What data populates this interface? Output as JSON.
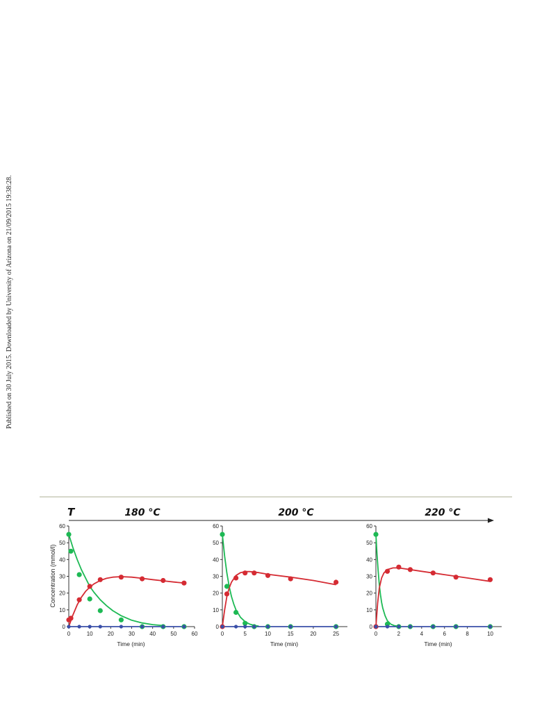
{
  "side_note": "Published on 30 July 2015. Downloaded by University of Arizona on 21/09/2015 19:38:28.",
  "figure": {
    "arrow_label": "T",
    "ylabel": "Concentration (mmol/l)",
    "colors": {
      "green": "#1db954",
      "red": "#d52b33",
      "blue": "#3a4fa8",
      "axis": "#333333",
      "rule": "#c9cbb8"
    }
  },
  "chart_data": [
    {
      "type": "scatter",
      "title": "180 °C",
      "xlabel": "Time (min)",
      "ylabel": "Concentration (mmol/l)",
      "xlim": [
        0,
        60
      ],
      "ylim": [
        0,
        60
      ],
      "xticks": [
        0,
        10,
        20,
        30,
        40,
        50,
        60
      ],
      "yticks": [
        0,
        10,
        20,
        30,
        40,
        50,
        60
      ],
      "series": [
        {
          "color": "green",
          "points": [
            [
              0,
              55
            ],
            [
              1,
              45
            ],
            [
              5,
              31
            ],
            [
              10,
              16.5
            ],
            [
              15,
              9.5
            ],
            [
              25,
              4
            ],
            [
              35,
              0
            ],
            [
              45,
              0
            ],
            [
              55,
              0
            ]
          ],
          "fit": [
            [
              0,
              55
            ],
            [
              2,
              47
            ],
            [
              4,
              40
            ],
            [
              6,
              34
            ],
            [
              8,
              29
            ],
            [
              10,
              24
            ],
            [
              12,
              20.5
            ],
            [
              15,
              16
            ],
            [
              18,
              12.5
            ],
            [
              21,
              9.5
            ],
            [
              25,
              6.5
            ],
            [
              30,
              3.8
            ],
            [
              35,
              2.2
            ],
            [
              40,
              1.2
            ],
            [
              45,
              0.6
            ]
          ]
        },
        {
          "color": "red",
          "points": [
            [
              0,
              4
            ],
            [
              1,
              5
            ],
            [
              5,
              16
            ],
            [
              10,
              24
            ],
            [
              15,
              28
            ],
            [
              25,
              29.5
            ],
            [
              35,
              28.5
            ],
            [
              45,
              27.5
            ],
            [
              55,
              26
            ]
          ],
          "fit": [
            [
              0,
              0
            ],
            [
              2,
              7
            ],
            [
              4,
              13
            ],
            [
              6,
              17.5
            ],
            [
              8,
              21
            ],
            [
              10,
              23.5
            ],
            [
              12,
              25.5
            ],
            [
              15,
              27.5
            ],
            [
              18,
              28.8
            ],
            [
              21,
              29.5
            ],
            [
              25,
              29.8
            ],
            [
              30,
              29.5
            ],
            [
              35,
              28.8
            ],
            [
              40,
              28
            ],
            [
              45,
              27.3
            ],
            [
              50,
              26.6
            ],
            [
              55,
              26
            ]
          ]
        },
        {
          "color": "blue",
          "points": [
            [
              0,
              0
            ],
            [
              5,
              0
            ],
            [
              10,
              0
            ],
            [
              15,
              0
            ],
            [
              25,
              0
            ],
            [
              35,
              0
            ],
            [
              45,
              0
            ],
            [
              55,
              0
            ]
          ],
          "fit": [
            [
              0,
              0
            ],
            [
              55,
              0
            ]
          ]
        }
      ]
    },
    {
      "type": "scatter",
      "title": "200 °C",
      "xlabel": "Time (min)",
      "ylabel": "",
      "xlim": [
        0,
        27.5
      ],
      "ylim": [
        0,
        60
      ],
      "xticks": [
        0,
        5,
        10,
        15,
        20,
        25
      ],
      "yticks": [
        0,
        10,
        20,
        30,
        40,
        50,
        60
      ],
      "series": [
        {
          "color": "green",
          "points": [
            [
              0,
              55
            ],
            [
              1,
              24
            ],
            [
              3,
              8.5
            ],
            [
              5,
              2
            ],
            [
              7,
              0
            ],
            [
              10,
              0
            ],
            [
              15,
              0
            ],
            [
              25,
              0
            ]
          ],
          "fit": [
            [
              0,
              55
            ],
            [
              0.5,
              42
            ],
            [
              1,
              32
            ],
            [
              1.5,
              24
            ],
            [
              2,
              18
            ],
            [
              2.5,
              13.5
            ],
            [
              3,
              10
            ],
            [
              4,
              5.5
            ],
            [
              5,
              3
            ],
            [
              6,
              1.5
            ],
            [
              7,
              0.7
            ],
            [
              8,
              0.3
            ]
          ]
        },
        {
          "color": "red",
          "points": [
            [
              0,
              0
            ],
            [
              1,
              19.5
            ],
            [
              3,
              29
            ],
            [
              5,
              32
            ],
            [
              7,
              32
            ],
            [
              10,
              30.5
            ],
            [
              15,
              28.5
            ],
            [
              25,
              26.5
            ]
          ],
          "fit": [
            [
              0,
              0
            ],
            [
              0.5,
              10
            ],
            [
              1,
              18
            ],
            [
              1.5,
              23
            ],
            [
              2,
              26.5
            ],
            [
              3,
              30.5
            ],
            [
              4,
              32.2
            ],
            [
              5,
              32.8
            ],
            [
              6,
              32.8
            ],
            [
              8,
              32.2
            ],
            [
              10,
              31.2
            ],
            [
              15,
              29.5
            ],
            [
              20,
              27.5
            ],
            [
              25,
              25
            ]
          ]
        },
        {
          "color": "blue",
          "points": [
            [
              0,
              0
            ],
            [
              3,
              0
            ],
            [
              5,
              0
            ],
            [
              7,
              0
            ],
            [
              10,
              0
            ],
            [
              15,
              0
            ],
            [
              25,
              0
            ]
          ],
          "fit": [
            [
              0,
              0
            ],
            [
              25,
              0
            ]
          ]
        }
      ]
    },
    {
      "type": "scatter",
      "title": "220 °C",
      "xlabel": "Time (min)",
      "ylabel": "",
      "xlim": [
        0,
        11
      ],
      "ylim": [
        0,
        60
      ],
      "xticks": [
        0,
        2,
        4,
        6,
        8,
        10
      ],
      "yticks": [
        0,
        10,
        20,
        30,
        40,
        50,
        60
      ],
      "series": [
        {
          "color": "green",
          "points": [
            [
              0,
              55
            ],
            [
              1,
              1.5
            ],
            [
              2,
              0
            ],
            [
              3,
              0
            ],
            [
              5,
              0
            ],
            [
              7,
              0
            ],
            [
              10,
              0
            ]
          ],
          "fit": [
            [
              0,
              55
            ],
            [
              0.1,
              43
            ],
            [
              0.2,
              33
            ],
            [
              0.3,
              25
            ],
            [
              0.4,
              19
            ],
            [
              0.5,
              14.5
            ],
            [
              0.6,
              11
            ],
            [
              0.8,
              6.5
            ],
            [
              1,
              3.5
            ],
            [
              1.3,
              1.5
            ],
            [
              1.6,
              0.6
            ],
            [
              2,
              0.2
            ]
          ]
        },
        {
          "color": "red",
          "points": [
            [
              0,
              0
            ],
            [
              1,
              33
            ],
            [
              2,
              35.5
            ],
            [
              3,
              34
            ],
            [
              5,
              32
            ],
            [
              7,
              29.5
            ],
            [
              10,
              28
            ]
          ],
          "fit": [
            [
              0,
              0
            ],
            [
              0.15,
              14
            ],
            [
              0.3,
              23
            ],
            [
              0.5,
              29
            ],
            [
              0.7,
              32
            ],
            [
              1,
              34
            ],
            [
              1.5,
              35
            ],
            [
              2,
              35
            ],
            [
              3,
              34
            ],
            [
              4,
              33
            ],
            [
              6,
              31
            ],
            [
              8,
              29
            ],
            [
              10,
              27
            ]
          ]
        },
        {
          "color": "blue",
          "points": [
            [
              0,
              0
            ],
            [
              1,
              0
            ],
            [
              2,
              0
            ],
            [
              3,
              0
            ],
            [
              5,
              0
            ],
            [
              7,
              0
            ],
            [
              10,
              0
            ]
          ],
          "fit": [
            [
              0,
              0
            ],
            [
              10,
              0
            ]
          ]
        }
      ]
    }
  ]
}
